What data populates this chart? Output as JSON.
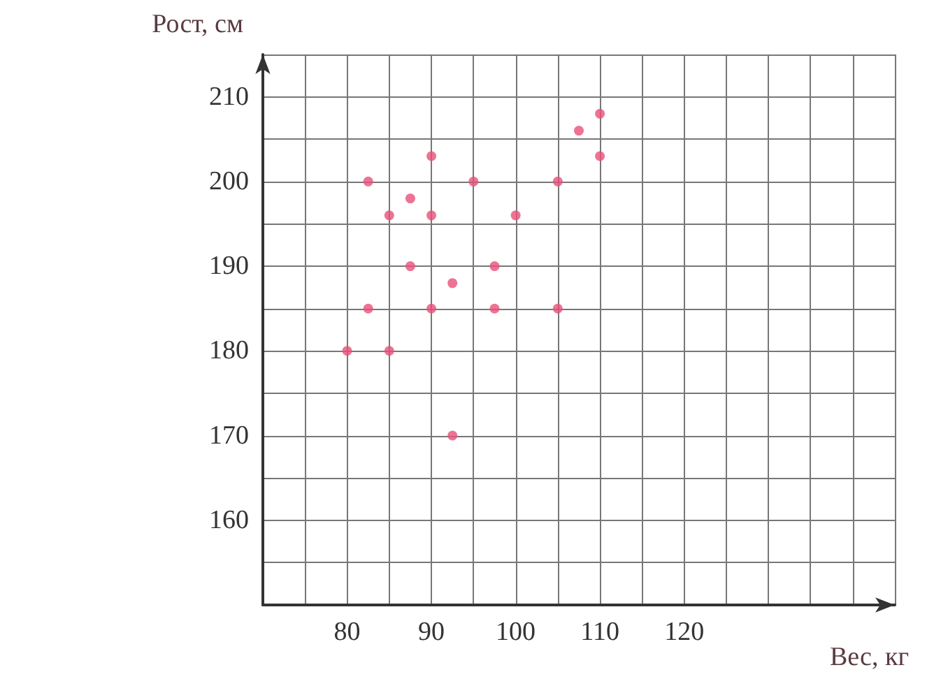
{
  "chart_data": {
    "type": "scatter",
    "xlabel": "Вес, кг",
    "ylabel": "Рост, см",
    "x": [
      80,
      82.5,
      82.5,
      85,
      85,
      87.5,
      87.5,
      90,
      90,
      90,
      92.5,
      92.5,
      95,
      97.5,
      97.5,
      100,
      105,
      105,
      107.5,
      110,
      110
    ],
    "series": [
      {
        "color": "#e8507a",
        "values": [
          180,
          185,
          200,
          196,
          180,
          198,
          190,
          203,
          196,
          185,
          188,
          170,
          200,
          190,
          185,
          196,
          200,
          185,
          206,
          208,
          203
        ]
      }
    ],
    "xlim": [
      70,
      145
    ],
    "ylim": [
      150,
      215
    ],
    "xticks": [
      {
        "value": 70,
        "label": null
      },
      {
        "value": 75,
        "label": null
      },
      80,
      {
        "value": 85,
        "label": null
      },
      90,
      {
        "value": 95,
        "label": null
      },
      100,
      {
        "value": 105,
        "label": null
      },
      110,
      {
        "value": 115,
        "label": null
      },
      120,
      {
        "value": 125,
        "label": null
      },
      {
        "value": 130,
        "label": null
      },
      {
        "value": 135,
        "label": null
      },
      {
        "value": 140,
        "label": null
      },
      {
        "value": 145,
        "label": null
      }
    ],
    "yticks": [
      {
        "value": 150,
        "label": null
      },
      {
        "value": 155,
        "label": null
      },
      160,
      {
        "value": 165,
        "label": null
      },
      170,
      {
        "value": 175,
        "label": null
      },
      180,
      {
        "value": 185,
        "label": null
      },
      190,
      {
        "value": 195,
        "label": null
      },
      200,
      {
        "value": 205,
        "label": null
      },
      210,
      {
        "value": 215,
        "label": null
      }
    ],
    "grid": true,
    "marker": "circle"
  }
}
